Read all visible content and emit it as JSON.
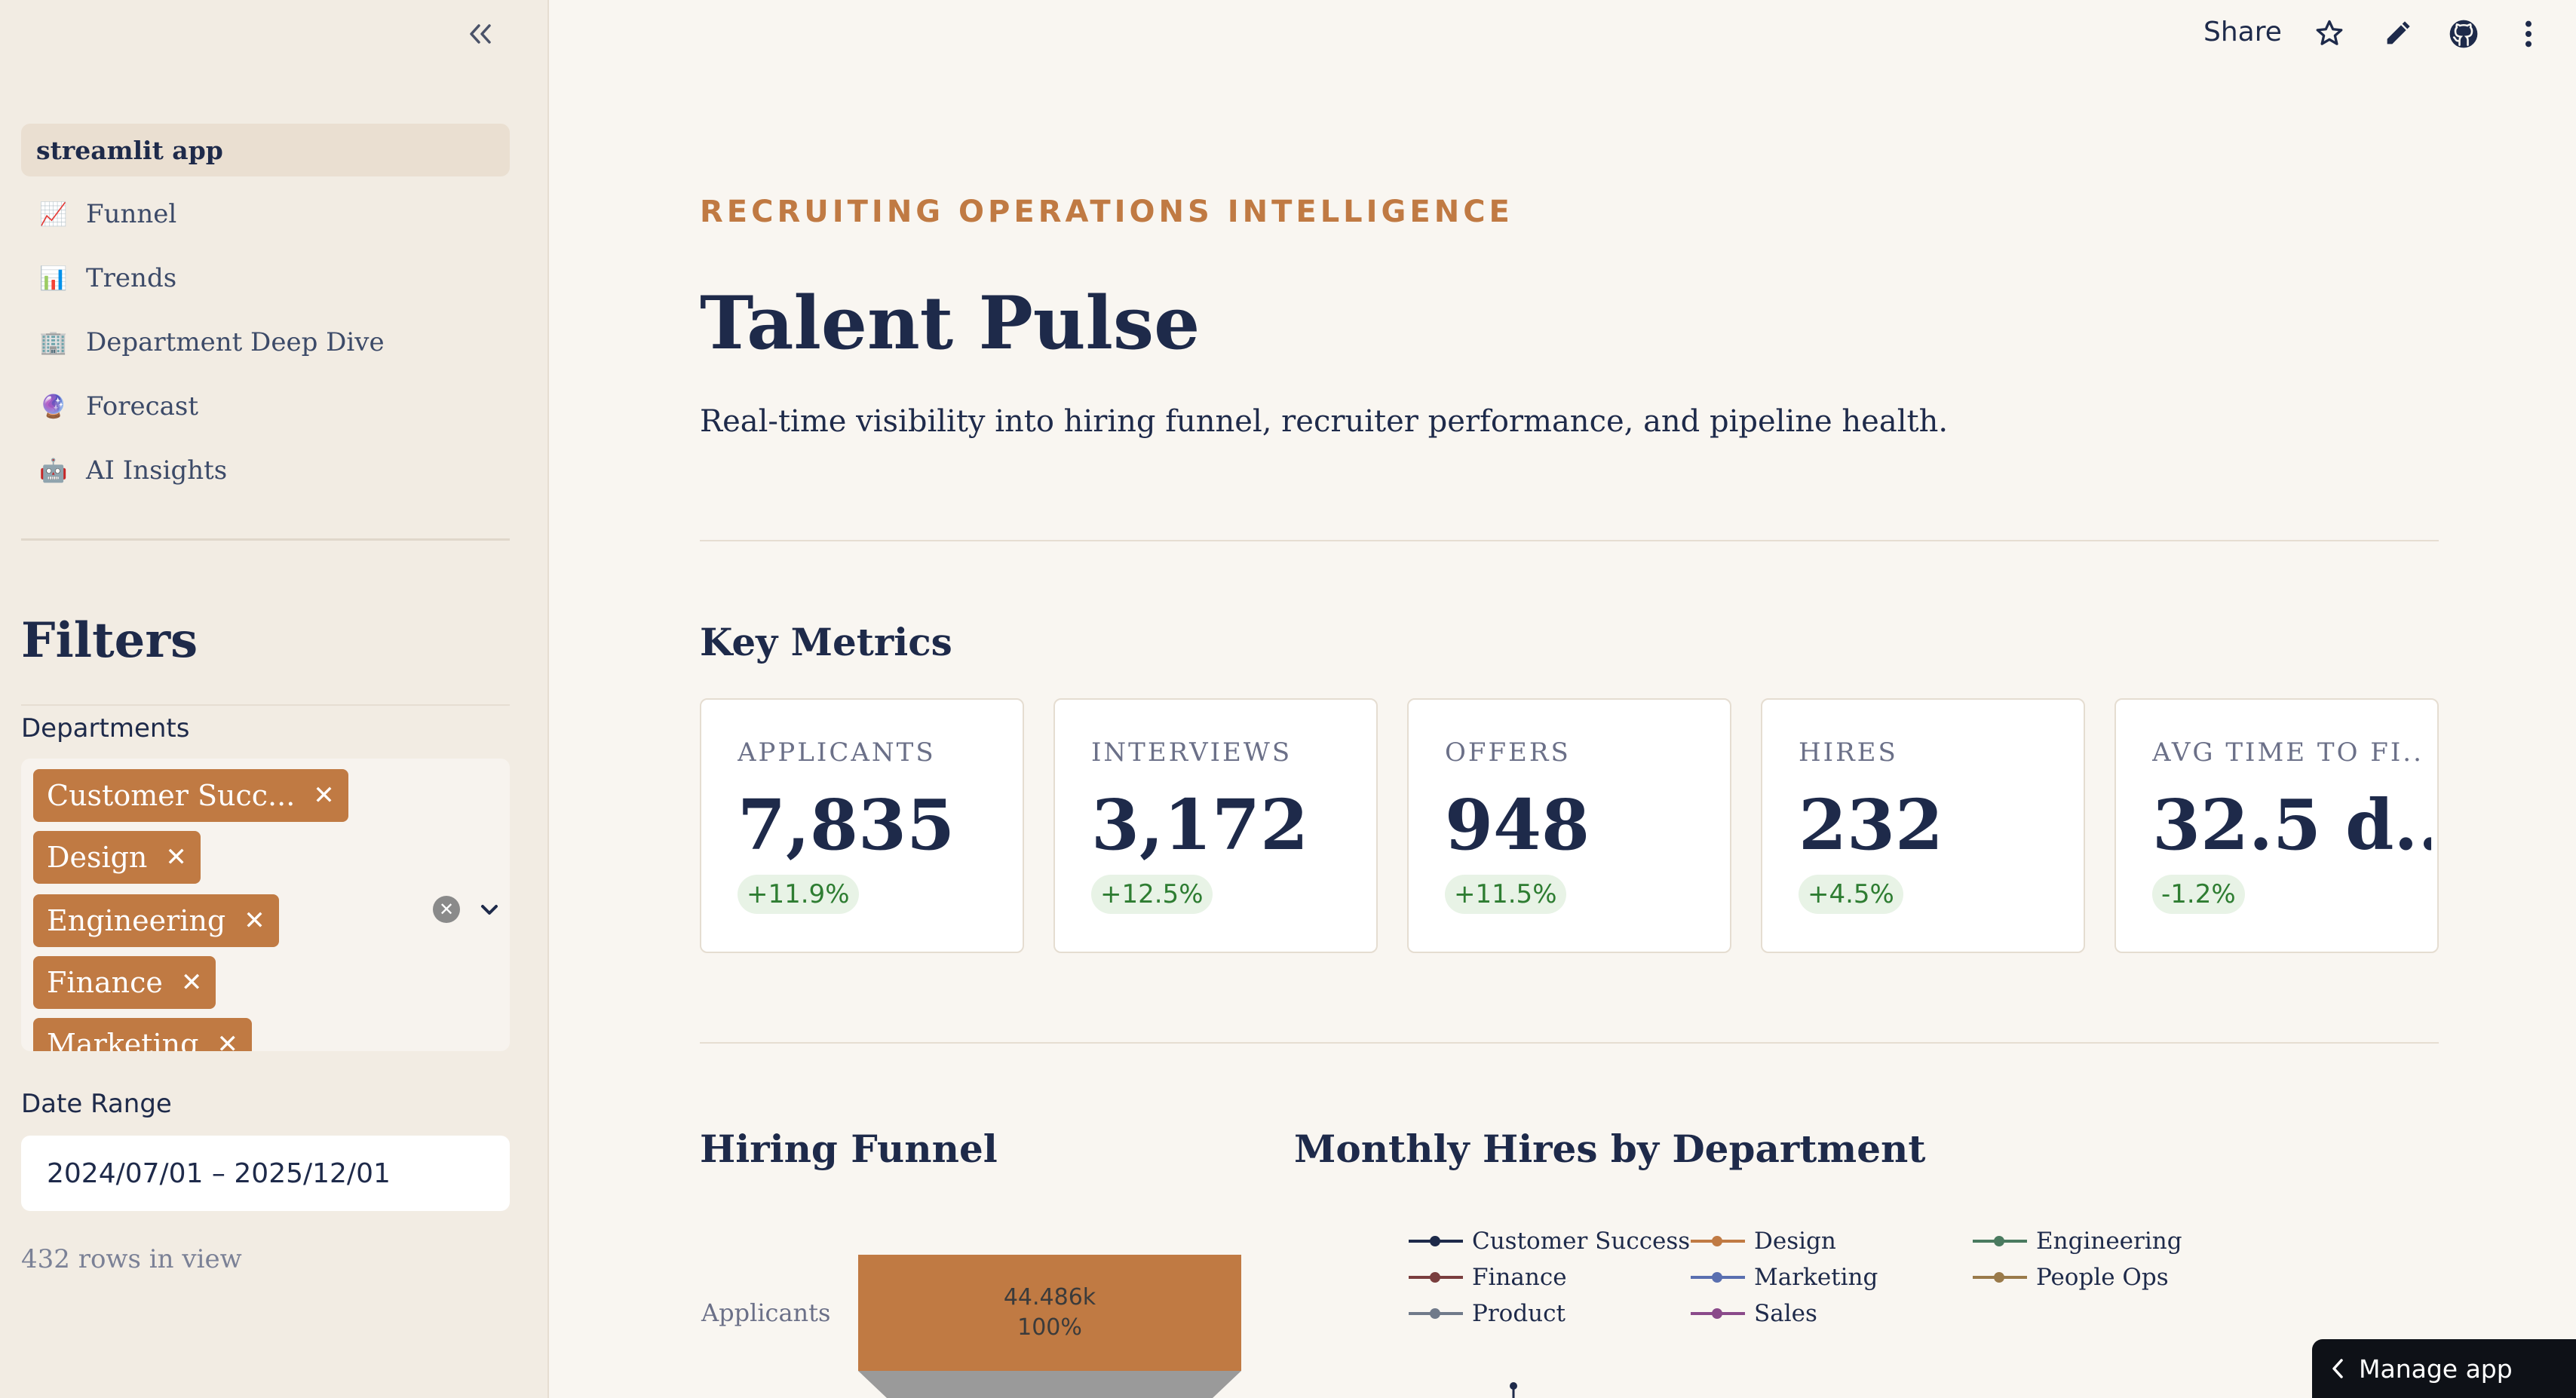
{
  "sidebar": {
    "nav_header": "streamlit app",
    "nav_items": [
      {
        "emoji": "📈",
        "label": "Funnel"
      },
      {
        "emoji": "📊",
        "label": "Trends"
      },
      {
        "emoji": "🏢",
        "label": "Department Deep Dive"
      },
      {
        "emoji": "🔮",
        "label": "Forecast"
      },
      {
        "emoji": "🤖",
        "label": "AI Insights"
      }
    ],
    "filters_heading": "Filters",
    "departments_label": "Departments",
    "departments_selected": [
      "Customer Succ...",
      "Design",
      "Engineering",
      "Finance",
      "Marketing"
    ],
    "date_range_label": "Date Range",
    "date_range_value": "2024/07/01 – 2025/12/01",
    "rows_info": "432 rows in view"
  },
  "toolbar": {
    "share_label": "Share",
    "icons": [
      "star-icon",
      "edit-icon",
      "github-icon",
      "more-icon"
    ]
  },
  "header": {
    "eyebrow": "RECRUITING OPERATIONS INTELLIGENCE",
    "title": "Talent Pulse",
    "subtitle": "Real-time visibility into hiring funnel, recruiter performance, and pipeline health."
  },
  "key_metrics": {
    "heading": "Key Metrics",
    "cards": [
      {
        "label": "APPLICANTS",
        "value": "7,835",
        "delta": "+11.9%"
      },
      {
        "label": "INTERVIEWS",
        "value": "3,172",
        "delta": "+12.5%"
      },
      {
        "label": "OFFERS",
        "value": "948",
        "delta": "+11.5%"
      },
      {
        "label": "HIRES",
        "value": "232",
        "delta": "+4.5%"
      },
      {
        "label": "AVG TIME TO FI...",
        "value": "32.5 d...",
        "delta": "-1.2%"
      }
    ]
  },
  "funnel": {
    "heading": "Hiring Funnel",
    "stage_label": "Applicants",
    "stage_value": "44.486k",
    "stage_percent": "100%"
  },
  "monthly_hires": {
    "heading": "Monthly Hires by Department",
    "legend": [
      {
        "name": "Customer Success",
        "color": "#1e2a4a"
      },
      {
        "name": "Design",
        "color": "#c07a43"
      },
      {
        "name": "Engineering",
        "color": "#4a7a5f"
      },
      {
        "name": "Finance",
        "color": "#7a3e3e"
      },
      {
        "name": "Marketing",
        "color": "#5a6fb0"
      },
      {
        "name": "People Ops",
        "color": "#9a7a4a"
      },
      {
        "name": "Product",
        "color": "#707a8a"
      },
      {
        "name": "Sales",
        "color": "#8a4a8a"
      }
    ]
  },
  "manage_app_label": "Manage app",
  "colors": {
    "accent": "#c07a43",
    "navy": "#1e2a4a",
    "positive": "#2e7d32",
    "background": "#f9f6f1",
    "sidebar": "#f2ece3"
  }
}
